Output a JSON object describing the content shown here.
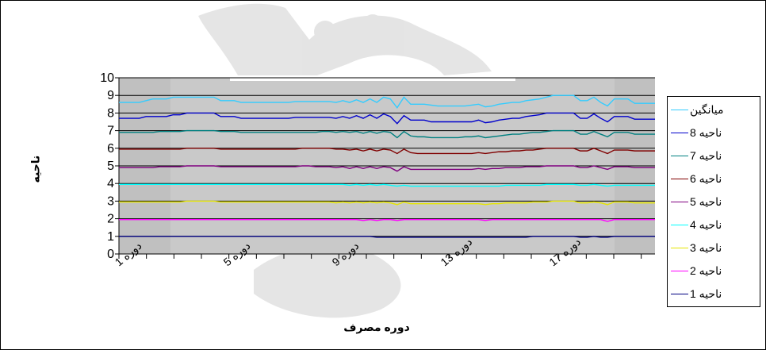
{
  "chart_data": {
    "type": "line",
    "xlabel": "دوره مصرف",
    "ylabel": "ناحیه",
    "ylim": [
      0,
      10
    ],
    "yticks": [
      0,
      1,
      2,
      3,
      4,
      5,
      6,
      7,
      8,
      9,
      10
    ],
    "x": [
      1,
      2,
      3,
      4,
      5,
      6,
      7,
      8,
      9,
      10,
      11,
      12,
      13,
      14,
      15,
      16,
      17,
      18,
      19,
      20,
      21,
      22,
      23,
      24,
      25,
      26,
      27,
      28,
      29,
      30,
      31,
      32,
      33,
      34,
      35,
      36,
      37,
      38,
      39,
      40,
      41,
      42,
      43,
      44,
      45,
      46,
      47,
      48,
      49,
      50,
      51,
      52,
      53,
      54,
      55,
      56,
      57,
      58,
      59,
      60,
      61,
      62,
      63,
      64,
      65,
      66,
      67,
      68,
      69,
      70,
      71,
      72,
      73,
      74,
      75,
      76,
      77,
      78,
      79,
      80
    ],
    "xtick_labels": [
      {
        "x": 1,
        "label": "دوره 1"
      },
      {
        "x": 17,
        "label": "دوره 5"
      },
      {
        "x": 33,
        "label": "دوره 9"
      },
      {
        "x": 49,
        "label": "دوره 13"
      },
      {
        "x": 65,
        "label": "دوره 17"
      }
    ],
    "legend_position": "right",
    "series": [
      {
        "name": "میانگین",
        "color": "#33CCFF",
        "base": 8.7,
        "values": [
          8.6,
          8.6,
          8.6,
          8.6,
          8.7,
          8.8,
          8.8,
          8.8,
          8.9,
          8.9,
          8.9,
          8.9,
          8.9,
          8.9,
          8.9,
          8.7,
          8.7,
          8.7,
          8.6,
          8.6,
          8.6,
          8.6,
          8.6,
          8.6,
          8.6,
          8.6,
          8.65,
          8.65,
          8.65,
          8.65,
          8.65,
          8.65,
          8.6,
          8.7,
          8.6,
          8.75,
          8.6,
          8.8,
          8.6,
          8.9,
          8.8,
          8.3,
          8.9,
          8.5,
          8.5,
          8.5,
          8.45,
          8.4,
          8.4,
          8.4,
          8.4,
          8.4,
          8.45,
          8.5,
          8.35,
          8.4,
          8.5,
          8.55,
          8.6,
          8.6,
          8.7,
          8.75,
          8.8,
          8.9,
          9.0,
          9.0,
          9.0,
          9.0,
          8.7,
          8.7,
          8.9,
          8.6,
          8.4,
          8.8,
          8.8,
          8.8,
          8.55,
          8.55,
          8.55,
          8.55
        ]
      },
      {
        "name": "ناحیه 8",
        "color": "#0000CC",
        "base": 7.7,
        "values": [
          7.7,
          7.7,
          7.7,
          7.7,
          7.8,
          7.8,
          7.8,
          7.8,
          7.9,
          7.9,
          8.0,
          8.0,
          8.0,
          8.0,
          8.0,
          7.8,
          7.8,
          7.8,
          7.7,
          7.7,
          7.7,
          7.7,
          7.7,
          7.7,
          7.7,
          7.7,
          7.75,
          7.75,
          7.75,
          7.75,
          7.75,
          7.75,
          7.7,
          7.8,
          7.7,
          7.85,
          7.7,
          7.9,
          7.7,
          7.95,
          7.8,
          7.4,
          7.85,
          7.6,
          7.6,
          7.6,
          7.5,
          7.5,
          7.5,
          7.5,
          7.5,
          7.5,
          7.5,
          7.6,
          7.45,
          7.5,
          7.6,
          7.65,
          7.7,
          7.7,
          7.8,
          7.85,
          7.9,
          8.0,
          8.0,
          8.0,
          8.0,
          8.0,
          7.7,
          7.7,
          7.95,
          7.7,
          7.5,
          7.8,
          7.8,
          7.8,
          7.65,
          7.65,
          7.65,
          7.65
        ]
      },
      {
        "name": "ناحیه 7",
        "color": "#008080",
        "base": 6.9,
        "values": [
          6.9,
          6.9,
          6.9,
          6.9,
          6.9,
          6.9,
          6.95,
          6.95,
          6.95,
          6.95,
          7.0,
          7.0,
          7.0,
          7.0,
          7.0,
          6.95,
          6.95,
          6.95,
          6.9,
          6.9,
          6.9,
          6.9,
          6.9,
          6.9,
          6.9,
          6.9,
          6.9,
          6.9,
          6.9,
          6.9,
          6.95,
          6.95,
          6.9,
          6.95,
          6.9,
          6.95,
          6.85,
          6.95,
          6.85,
          6.95,
          6.9,
          6.6,
          6.95,
          6.7,
          6.65,
          6.65,
          6.6,
          6.6,
          6.6,
          6.6,
          6.6,
          6.65,
          6.65,
          6.7,
          6.6,
          6.65,
          6.7,
          6.75,
          6.8,
          6.8,
          6.85,
          6.9,
          6.9,
          6.95,
          7.0,
          7.0,
          7.0,
          7.0,
          6.8,
          6.8,
          6.95,
          6.8,
          6.65,
          6.9,
          6.9,
          6.9,
          6.8,
          6.8,
          6.8,
          6.8
        ]
      },
      {
        "name": "ناحیه 6",
        "color": "#800000",
        "base": 5.95,
        "values": [
          5.95,
          5.95,
          5.95,
          5.95,
          5.95,
          5.95,
          5.95,
          5.95,
          5.95,
          5.95,
          6.0,
          6.0,
          6.0,
          6.0,
          6.0,
          5.95,
          5.95,
          5.95,
          5.95,
          5.95,
          5.95,
          5.95,
          5.95,
          5.95,
          5.95,
          5.95,
          5.95,
          6.0,
          6.0,
          6.0,
          6.0,
          6.0,
          5.95,
          5.95,
          5.9,
          5.95,
          5.85,
          5.95,
          5.85,
          5.95,
          5.9,
          5.7,
          5.95,
          5.75,
          5.7,
          5.7,
          5.7,
          5.7,
          5.7,
          5.7,
          5.7,
          5.7,
          5.7,
          5.75,
          5.7,
          5.75,
          5.8,
          5.8,
          5.85,
          5.85,
          5.9,
          5.9,
          5.95,
          6.0,
          6.0,
          6.0,
          6.0,
          6.0,
          5.85,
          5.85,
          6.0,
          5.85,
          5.7,
          5.9,
          5.9,
          5.9,
          5.85,
          5.85,
          5.85,
          5.85
        ]
      },
      {
        "name": "ناحیه 5",
        "color": "#800080",
        "base": 4.95,
        "values": [
          4.9,
          4.9,
          4.9,
          4.9,
          4.9,
          4.9,
          4.95,
          4.95,
          4.95,
          4.95,
          5.0,
          5.0,
          5.0,
          5.0,
          5.0,
          4.95,
          4.95,
          4.95,
          4.95,
          4.95,
          4.95,
          4.95,
          4.95,
          4.95,
          4.95,
          4.95,
          4.95,
          5.0,
          5.0,
          4.95,
          4.95,
          4.95,
          4.9,
          4.95,
          4.85,
          4.95,
          4.85,
          4.95,
          4.85,
          4.95,
          4.9,
          4.7,
          4.95,
          4.8,
          4.8,
          4.8,
          4.8,
          4.8,
          4.8,
          4.8,
          4.8,
          4.8,
          4.8,
          4.85,
          4.8,
          4.85,
          4.85,
          4.9,
          4.9,
          4.9,
          4.95,
          4.95,
          4.95,
          5.0,
          5.0,
          5.0,
          5.0,
          5.0,
          4.9,
          4.9,
          5.0,
          4.9,
          4.8,
          4.95,
          4.95,
          4.95,
          4.9,
          4.9,
          4.9,
          4.9
        ]
      },
      {
        "name": "ناحیه 4",
        "color": "#00FFFF",
        "base": 3.95,
        "values": [
          3.95,
          3.95,
          3.95,
          3.95,
          3.95,
          3.95,
          3.95,
          3.95,
          3.95,
          3.95,
          3.95,
          3.95,
          3.95,
          3.95,
          3.95,
          3.95,
          3.95,
          3.95,
          3.95,
          3.95,
          3.95,
          3.95,
          3.95,
          3.95,
          3.95,
          3.95,
          3.95,
          3.95,
          3.95,
          3.95,
          3.95,
          3.95,
          3.95,
          3.95,
          3.9,
          3.95,
          3.9,
          3.95,
          3.9,
          3.95,
          3.9,
          3.85,
          3.9,
          3.85,
          3.85,
          3.85,
          3.85,
          3.85,
          3.85,
          3.85,
          3.85,
          3.85,
          3.85,
          3.85,
          3.85,
          3.85,
          3.85,
          3.9,
          3.9,
          3.9,
          3.9,
          3.9,
          3.9,
          3.95,
          3.95,
          3.95,
          3.95,
          3.95,
          3.9,
          3.9,
          3.95,
          3.9,
          3.85,
          3.9,
          3.9,
          3.9,
          3.9,
          3.9,
          3.9,
          3.9
        ]
      },
      {
        "name": "ناحیه 3",
        "color": "#E6E600",
        "base": 2.95,
        "values": [
          2.95,
          2.95,
          2.95,
          2.95,
          2.95,
          2.95,
          2.95,
          2.95,
          2.95,
          2.95,
          3.0,
          3.0,
          3.0,
          3.0,
          3.0,
          2.95,
          2.95,
          2.95,
          2.95,
          2.95,
          2.95,
          2.95,
          2.95,
          2.95,
          2.95,
          2.95,
          2.95,
          2.95,
          2.95,
          2.95,
          2.95,
          2.95,
          2.9,
          2.95,
          2.9,
          2.95,
          2.9,
          2.95,
          2.9,
          2.95,
          2.9,
          2.8,
          2.95,
          2.85,
          2.85,
          2.85,
          2.85,
          2.85,
          2.85,
          2.85,
          2.85,
          2.85,
          2.85,
          2.85,
          2.8,
          2.85,
          2.85,
          2.9,
          2.9,
          2.9,
          2.9,
          2.95,
          2.95,
          2.95,
          3.0,
          3.0,
          3.0,
          3.0,
          2.9,
          2.9,
          2.95,
          2.9,
          2.8,
          2.95,
          2.95,
          2.95,
          2.9,
          2.9,
          2.9,
          2.9
        ]
      },
      {
        "name": "ناحیه 2",
        "color": "#FF00FF",
        "base": 1.95,
        "values": [
          1.95,
          1.95,
          1.95,
          1.95,
          1.95,
          1.95,
          1.95,
          1.95,
          1.95,
          1.95,
          1.95,
          1.95,
          1.95,
          1.95,
          1.95,
          1.95,
          1.95,
          1.95,
          1.95,
          1.95,
          1.95,
          1.95,
          1.95,
          1.95,
          1.95,
          1.95,
          1.95,
          1.95,
          1.95,
          1.95,
          1.95,
          1.95,
          1.95,
          1.95,
          1.95,
          1.95,
          1.9,
          1.95,
          1.9,
          1.95,
          1.95,
          1.9,
          1.95,
          1.95,
          1.95,
          1.95,
          1.95,
          1.95,
          1.95,
          1.95,
          1.95,
          1.95,
          1.95,
          1.95,
          1.9,
          1.95,
          1.95,
          1.95,
          1.95,
          1.95,
          1.95,
          1.95,
          1.95,
          1.95,
          1.95,
          1.95,
          1.95,
          1.95,
          1.95,
          1.95,
          1.95,
          1.95,
          1.85,
          1.95,
          1.95,
          1.95,
          1.95,
          1.95,
          1.95,
          1.95
        ]
      },
      {
        "name": "ناحیه 1",
        "color": "#000080",
        "base": 1.0,
        "values": [
          1.0,
          1.0,
          1.0,
          1.0,
          1.0,
          1.0,
          1.0,
          1.0,
          1.0,
          1.0,
          1.0,
          1.0,
          1.0,
          1.0,
          1.0,
          1.0,
          1.0,
          1.0,
          1.0,
          1.0,
          1.0,
          1.0,
          1.0,
          1.0,
          1.0,
          1.0,
          1.0,
          1.0,
          1.0,
          1.0,
          1.0,
          1.0,
          1.0,
          1.0,
          1.0,
          1.0,
          1.0,
          1.0,
          0.95,
          0.95,
          0.95,
          0.95,
          0.95,
          0.95,
          0.95,
          0.95,
          0.95,
          0.95,
          0.95,
          0.95,
          0.95,
          0.95,
          0.95,
          0.95,
          0.95,
          0.95,
          0.95,
          0.95,
          0.95,
          0.95,
          0.95,
          1.0,
          1.0,
          1.0,
          1.0,
          1.0,
          1.0,
          1.0,
          0.95,
          0.95,
          1.0,
          0.95,
          0.95,
          1.0,
          1.0,
          1.0,
          1.0,
          1.0,
          1.0,
          1.0
        ]
      }
    ]
  }
}
